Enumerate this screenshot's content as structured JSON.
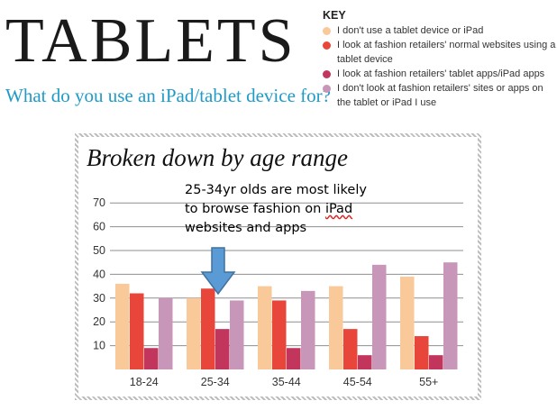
{
  "header": {
    "title": "TABLETS",
    "subtitle": "What do you use an iPad/tablet device for?"
  },
  "key": {
    "title": "KEY",
    "items": [
      {
        "label": "I don't use a tablet device or iPad",
        "color": "#f9c99a"
      },
      {
        "label": "I look at fashion retailers' normal websites using a tablet device",
        "color": "#e8463a"
      },
      {
        "label": "I look at fashion retailers' tablet apps/iPad apps",
        "color": "#c2365e"
      },
      {
        "label": "I don't look at fashion retailers' sites or apps on the tablet or iPad I use",
        "color": "#c896b8"
      }
    ]
  },
  "annotation": {
    "line1": "25-34yr olds are most likely",
    "line2_pre": "to browse fashion on ",
    "line2_squig": "iPad",
    "line3": "websites and apps"
  },
  "chart_data": {
    "type": "bar",
    "title": "Broken down by age range",
    "categories": [
      "18-24",
      "25-34",
      "35-44",
      "45-54",
      "55+"
    ],
    "yticks": [
      10,
      20,
      30,
      40,
      50,
      60,
      70
    ],
    "ylim": [
      0,
      70
    ],
    "grid": true,
    "series": [
      {
        "name": "I don't use a tablet device or iPad",
        "color": "#f9c99a",
        "values": [
          36,
          30,
          35,
          35,
          39
        ]
      },
      {
        "name": "I look at fashion retailers' normal websites using a tablet device",
        "color": "#e8463a",
        "values": [
          32,
          34,
          29,
          17,
          14
        ]
      },
      {
        "name": "I look at fashion retailers' tablet apps/iPad apps",
        "color": "#c2365e",
        "values": [
          9,
          17,
          9,
          6,
          6
        ]
      },
      {
        "name": "I don't look at fashion retailers' sites or apps on the tablet or iPad I use",
        "color": "#c896b8",
        "values": [
          30,
          29,
          33,
          44,
          45
        ]
      }
    ]
  }
}
